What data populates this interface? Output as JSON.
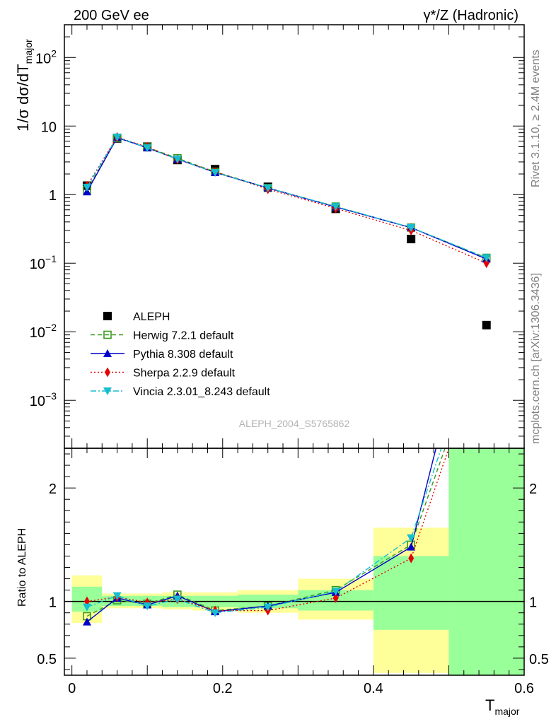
{
  "header": {
    "left": "200 GeV ee",
    "right": "γ*/Z (Hadronic)"
  },
  "side_texts": {
    "rivet": "Rivet 3.1.10, ≥ 2.4M events",
    "mcplots": "mcplots.cern.ch [arXiv:1306.3436]"
  },
  "watermark": "ALEPH_2004_S5765862",
  "chart_data": [
    {
      "type": "scatter",
      "panel": "main",
      "ylabel": "1/σ  dσ/dT",
      "ylabel_sub": "major",
      "yscale": "log",
      "ylim": [
        0.0002,
        300
      ],
      "xlim": [
        -0.01,
        0.6
      ],
      "y_ticks": [
        {
          "value": 0.001,
          "base": "10",
          "exp": "−3"
        },
        {
          "value": 0.01,
          "base": "10",
          "exp": "−2"
        },
        {
          "value": 0.1,
          "base": "10",
          "exp": "−1"
        },
        {
          "value": 1,
          "base": "1",
          "exp": ""
        },
        {
          "value": 10,
          "base": "10",
          "exp": ""
        },
        {
          "value": 100,
          "base": "10",
          "exp": "2"
        }
      ],
      "legend_position": "lower-left",
      "series": [
        {
          "name": "ALEPH",
          "style": "data",
          "color": "#000000",
          "marker": "square",
          "x": [
            0.02,
            0.06,
            0.1,
            0.14,
            0.19,
            0.26,
            0.35,
            0.45,
            0.55
          ],
          "y": [
            1.35,
            6.6,
            5.0,
            3.2,
            2.35,
            1.3,
            0.62,
            0.225,
            0.0125
          ]
        },
        {
          "name": "Herwig 7.2.1 default",
          "color": "#3a9a1e",
          "dash": "6,4",
          "marker": "open-square",
          "x": [
            0.02,
            0.06,
            0.1,
            0.14,
            0.19,
            0.26,
            0.35,
            0.45,
            0.55
          ],
          "y": [
            1.17,
            6.7,
            4.9,
            3.4,
            2.15,
            1.25,
            0.67,
            0.33,
            0.12
          ]
        },
        {
          "name": "Pythia 8.308 default",
          "color": "#0000cc",
          "dash": "",
          "marker": "triangle-up",
          "x": [
            0.02,
            0.06,
            0.1,
            0.14,
            0.19,
            0.26,
            0.35,
            0.45,
            0.55
          ],
          "y": [
            1.1,
            6.8,
            4.8,
            3.3,
            2.1,
            1.25,
            0.66,
            0.33,
            0.115
          ]
        },
        {
          "name": "Sherpa 2.2.9 default",
          "color": "#e60000",
          "dash": "2,3",
          "marker": "diamond",
          "x": [
            0.02,
            0.06,
            0.1,
            0.14,
            0.19,
            0.26,
            0.35,
            0.45,
            0.55
          ],
          "y": [
            1.35,
            6.9,
            4.95,
            3.25,
            2.15,
            1.2,
            0.63,
            0.3,
            0.1
          ]
        },
        {
          "name": "Vincia 2.3.01_8.243 default",
          "color": "#17becf",
          "dash": "8,3,2,3",
          "marker": "triangle-down",
          "x": [
            0.02,
            0.06,
            0.1,
            0.14,
            0.19,
            0.26,
            0.35,
            0.45,
            0.55
          ],
          "y": [
            1.28,
            6.9,
            4.8,
            3.3,
            2.1,
            1.25,
            0.67,
            0.33,
            0.12
          ]
        }
      ]
    },
    {
      "type": "line",
      "panel": "ratio",
      "ylabel": "Ratio to ALEPH",
      "xlabel": "T",
      "xlabel_sub": "major",
      "ylim": [
        0.35,
        2.35
      ],
      "xlim": [
        -0.01,
        0.6
      ],
      "x_ticks": [
        "0",
        "0.2",
        "0.4",
        "0.6"
      ],
      "y_ticks": [
        "0.5",
        "1",
        "2"
      ],
      "reference_line": 1,
      "uncertainty_bands": [
        {
          "x0": 0.0,
          "x1": 0.04,
          "stat": [
            0.91,
            1.13
          ],
          "total": [
            0.81,
            1.23
          ]
        },
        {
          "x0": 0.04,
          "x1": 0.08,
          "stat": [
            0.96,
            1.05
          ],
          "total": [
            0.94,
            1.07
          ]
        },
        {
          "x0": 0.08,
          "x1": 0.12,
          "stat": [
            0.96,
            1.05
          ],
          "total": [
            0.94,
            1.07
          ]
        },
        {
          "x0": 0.12,
          "x1": 0.16,
          "stat": [
            0.95,
            1.05
          ],
          "total": [
            0.93,
            1.08
          ]
        },
        {
          "x0": 0.16,
          "x1": 0.22,
          "stat": [
            0.95,
            1.05
          ],
          "total": [
            0.92,
            1.08
          ]
        },
        {
          "x0": 0.22,
          "x1": 0.3,
          "stat": [
            0.94,
            1.06
          ],
          "total": [
            0.9,
            1.1
          ]
        },
        {
          "x0": 0.3,
          "x1": 0.4,
          "stat": [
            0.92,
            1.1
          ],
          "total": [
            0.84,
            1.2
          ]
        },
        {
          "x0": 0.4,
          "x1": 0.5,
          "stat": [
            0.75,
            1.4
          ],
          "total": [
            0.37,
            1.65
          ]
        },
        {
          "x0": 0.5,
          "x1": 0.6,
          "stat": [
            0.35,
            2.35
          ],
          "total": [
            0.35,
            2.35
          ]
        }
      ],
      "band_colors": {
        "stat": "#99ff99",
        "total": "#ffff99"
      },
      "series": [
        {
          "name": "Herwig 7.2.1 default",
          "color": "#3a9a1e",
          "dash": "6,4",
          "marker": "open-square",
          "x": [
            0.02,
            0.06,
            0.1,
            0.14,
            0.19,
            0.26,
            0.35,
            0.45,
            0.495
          ],
          "y": [
            0.87,
            1.01,
            0.98,
            1.06,
            0.92,
            0.96,
            1.1,
            1.5,
            2.35
          ]
        },
        {
          "name": "Pythia 8.308 default",
          "color": "#0000cc",
          "dash": "",
          "marker": "triangle-up",
          "x": [
            0.02,
            0.06,
            0.1,
            0.14,
            0.19,
            0.26,
            0.35,
            0.45,
            0.483
          ],
          "y": [
            0.82,
            1.03,
            0.97,
            1.05,
            0.91,
            0.96,
            1.08,
            1.48,
            2.35
          ]
        },
        {
          "name": "Sherpa 2.2.9 default",
          "color": "#e60000",
          "dash": "2,3",
          "marker": "diamond",
          "x": [
            0.02,
            0.06,
            0.1,
            0.14,
            0.19,
            0.26,
            0.35,
            0.45,
            0.5
          ],
          "y": [
            1.0,
            1.04,
            0.99,
            1.02,
            0.92,
            0.92,
            1.03,
            1.38,
            2.35
          ]
        },
        {
          "name": "Vincia 2.3.01_8.243 default",
          "color": "#17becf",
          "dash": "8,3,2,3",
          "marker": "triangle-down",
          "x": [
            0.02,
            0.06,
            0.1,
            0.14,
            0.19,
            0.26,
            0.35,
            0.45,
            0.49
          ],
          "y": [
            0.95,
            1.05,
            0.96,
            1.02,
            0.9,
            0.95,
            1.09,
            1.56,
            2.35
          ]
        }
      ]
    }
  ]
}
